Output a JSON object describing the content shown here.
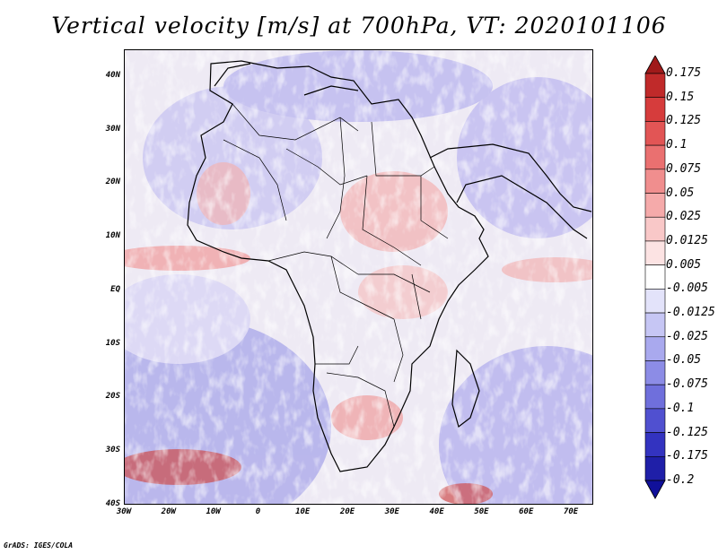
{
  "title": "Vertical velocity [m/s] at 700hPa, VT: 2020101106",
  "credit": "GrADS: IGES/COLA",
  "map": {
    "lon_range": [
      -30,
      75
    ],
    "lat_range": [
      -40,
      45
    ],
    "lat_ticks": [
      {
        "value": 40,
        "label": "40N"
      },
      {
        "value": 30,
        "label": "30N"
      },
      {
        "value": 20,
        "label": "20N"
      },
      {
        "value": 10,
        "label": "10N"
      },
      {
        "value": 0,
        "label": "EQ"
      },
      {
        "value": -10,
        "label": "10S"
      },
      {
        "value": -20,
        "label": "20S"
      },
      {
        "value": -30,
        "label": "30S"
      },
      {
        "value": -40,
        "label": "40S"
      }
    ],
    "lon_ticks": [
      {
        "value": -30,
        "label": "30W"
      },
      {
        "value": -20,
        "label": "20W"
      },
      {
        "value": -10,
        "label": "10W"
      },
      {
        "value": 0,
        "label": "0"
      },
      {
        "value": 10,
        "label": "10E"
      },
      {
        "value": 20,
        "label": "20E"
      },
      {
        "value": 30,
        "label": "30E"
      },
      {
        "value": 40,
        "label": "40E"
      },
      {
        "value": 50,
        "label": "50E"
      },
      {
        "value": 60,
        "label": "60E"
      },
      {
        "value": 70,
        "label": "70E"
      }
    ]
  },
  "colorbar": {
    "levels": [
      "0.175",
      "0.15",
      "0.125",
      "0.1",
      "0.075",
      "0.05",
      "0.025",
      "0.0125",
      "0.005",
      "-0.005",
      "-0.0125",
      "-0.025",
      "-0.05",
      "-0.075",
      "-0.1",
      "-0.125",
      "-0.175",
      "-0.2"
    ],
    "colors": [
      "#a01a1a",
      "#c02a2a",
      "#d63c3c",
      "#e25555",
      "#ea7070",
      "#f08e8e",
      "#f5aaaa",
      "#f9c8c8",
      "#fce3e3",
      "#ffffff",
      "#e3e3fa",
      "#c6c6f4",
      "#a9a9ee",
      "#8c8ce6",
      "#6f6fdc",
      "#5050d0",
      "#3333c0",
      "#1f1fa8",
      "#10109a"
    ]
  }
}
